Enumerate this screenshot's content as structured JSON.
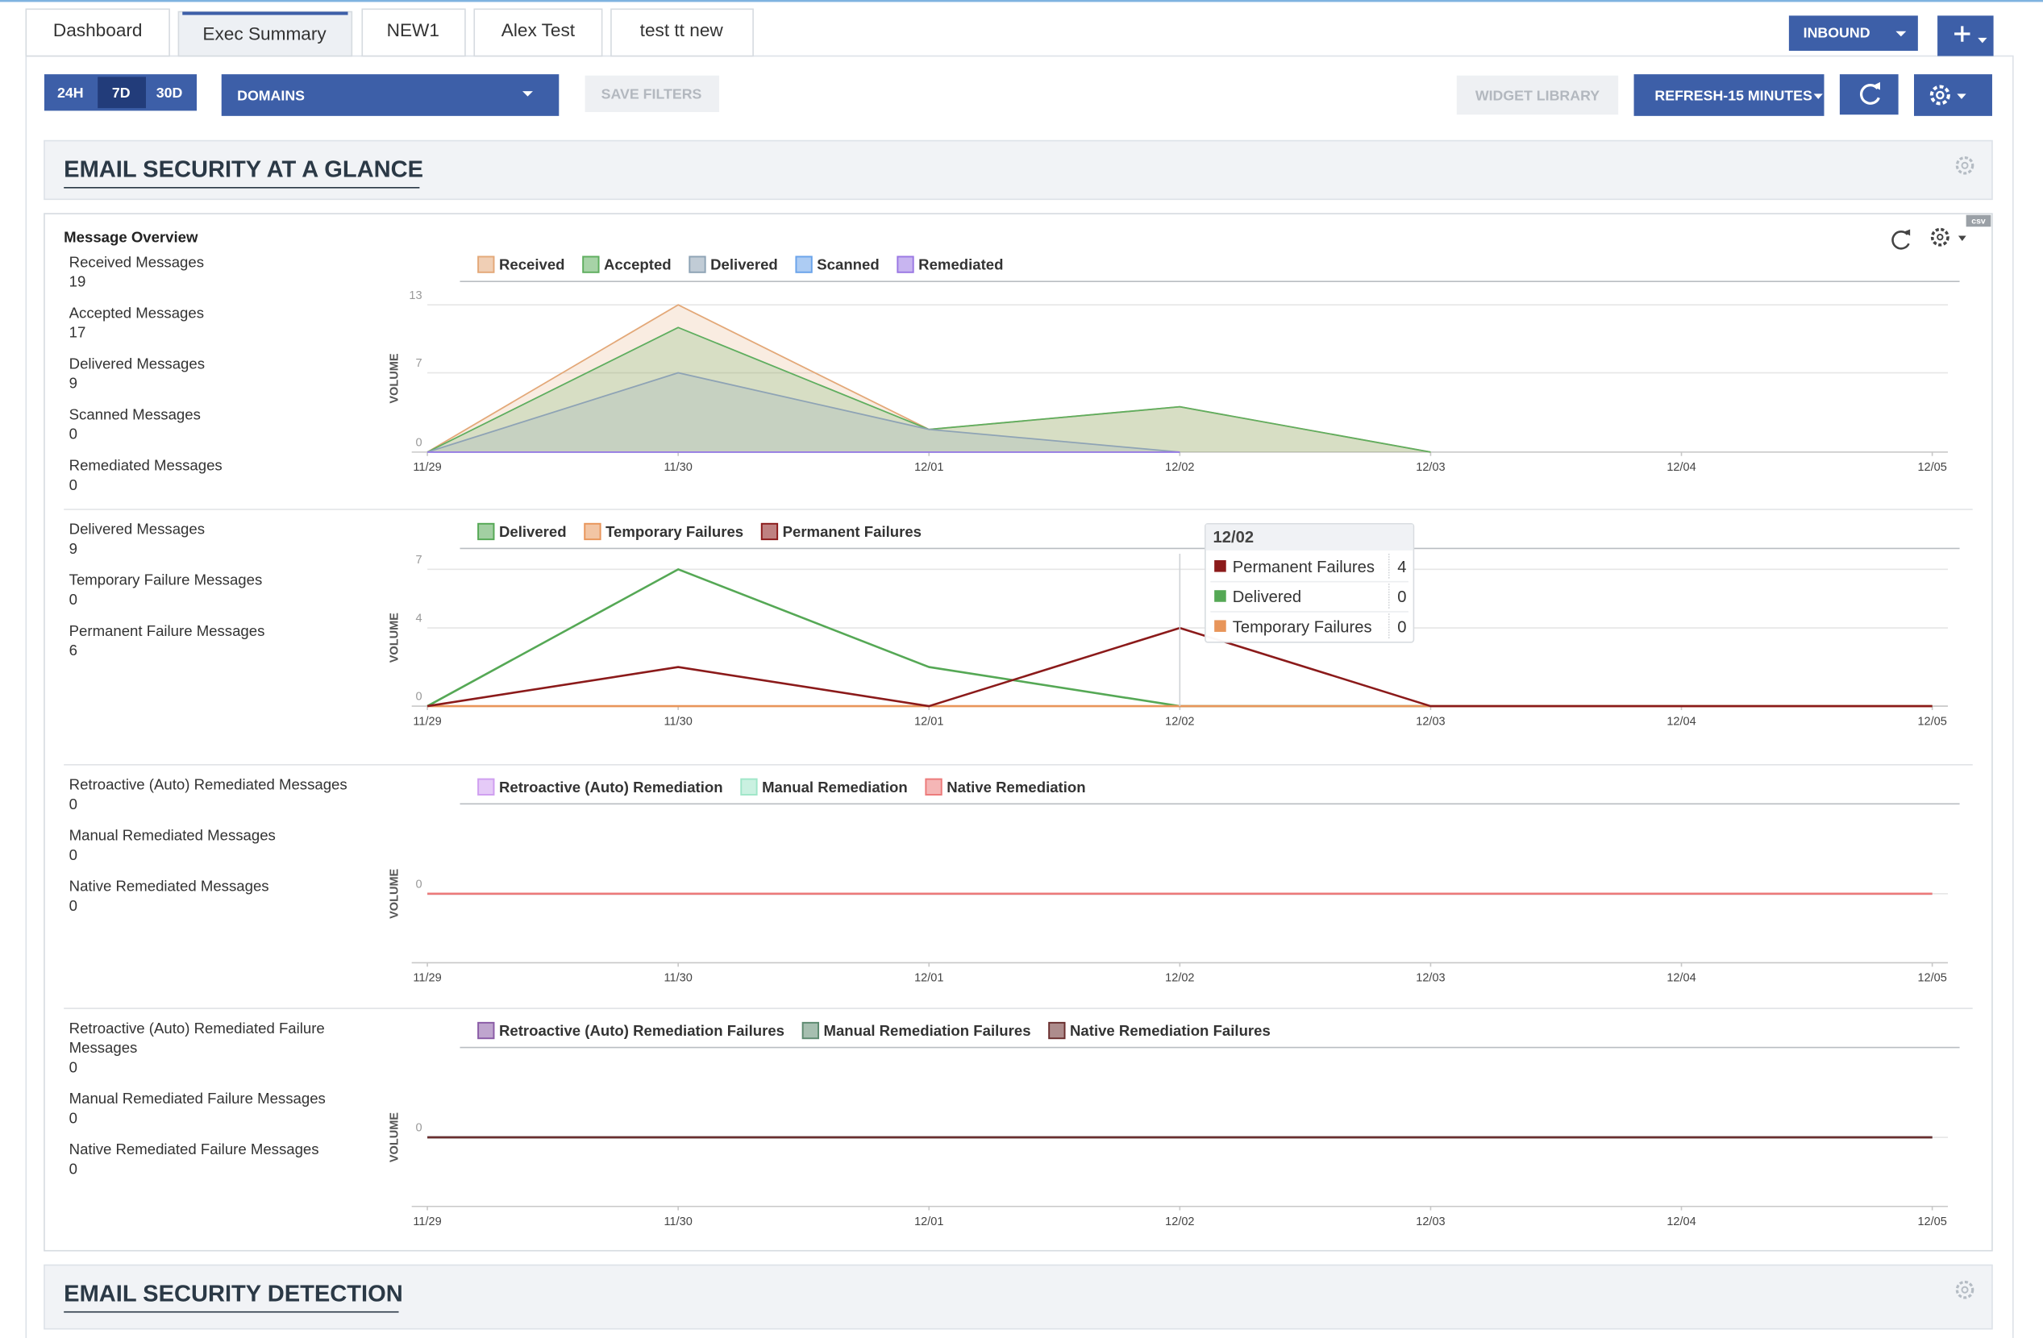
{
  "tabs": [
    "Dashboard",
    "Exec Summary",
    "NEW1",
    "Alex Test",
    "test tt new"
  ],
  "inbound": "INBOUND",
  "filters": {
    "ranges": [
      "24H",
      "7D",
      "30D"
    ],
    "domains": "DOMAINS",
    "save": "SAVE FILTERS",
    "widget_library": "WIDGET LIBRARY",
    "refresh": "REFRESH-15 MINUTES"
  },
  "sections": [
    "EMAIL SECURITY AT A GLANCE",
    "EMAIL SECURITY DETECTION"
  ],
  "widget": {
    "title": "Message Overview",
    "csv": "csv"
  },
  "stats": [
    [
      {
        "label": "Received Messages",
        "value": 19
      },
      {
        "label": "Accepted Messages",
        "value": 17
      },
      {
        "label": "Delivered Messages",
        "value": 9
      },
      {
        "label": "Scanned Messages",
        "value": 0
      },
      {
        "label": "Remediated Messages",
        "value": 0
      }
    ],
    [
      {
        "label": "Delivered Messages",
        "value": 9
      },
      {
        "label": "Temporary Failure Messages",
        "value": 0
      },
      {
        "label": "Permanent Failure Messages",
        "value": 6
      }
    ],
    [
      {
        "label": "Retroactive (Auto) Remediated Messages",
        "value": 0
      },
      {
        "label": "Manual Remediated Messages",
        "value": 0
      },
      {
        "label": "Native Remediated Messages",
        "value": 0
      }
    ],
    [
      {
        "label": "Retroactive (Auto) Remediated Failure Messages",
        "value": 0
      },
      {
        "label": "Manual Remediated Failure Messages",
        "value": 0
      },
      {
        "label": "Native Remediated Failure Messages",
        "value": 0
      }
    ]
  ],
  "chart_data": [
    {
      "type": "area",
      "y_label": "VOLUME",
      "x": [
        "11/29",
        "11/30",
        "12/01",
        "12/02",
        "12/03",
        "12/04",
        "12/05"
      ],
      "ylim": [
        0,
        13
      ],
      "yticks": [
        0,
        7,
        13
      ],
      "series": [
        {
          "name": "Received",
          "color": "#e3a878",
          "values": [
            0,
            13,
            2,
            4,
            0,
            null,
            null
          ]
        },
        {
          "name": "Accepted",
          "color": "#5fae5f",
          "values": [
            0,
            11,
            2,
            4,
            0,
            null,
            null
          ]
        },
        {
          "name": "Delivered",
          "color": "#8ea3b5",
          "values": [
            0,
            7,
            2,
            0,
            null,
            null,
            null
          ]
        },
        {
          "name": "Scanned",
          "color": "#6aa3ea",
          "values": [
            0,
            0,
            0,
            0,
            null,
            null,
            null
          ]
        },
        {
          "name": "Remediated",
          "color": "#9a78e3",
          "values": [
            0,
            0,
            0,
            0,
            null,
            null,
            null
          ]
        }
      ]
    },
    {
      "type": "line",
      "y_label": "VOLUME",
      "x": [
        "11/29",
        "11/30",
        "12/01",
        "12/02",
        "12/03",
        "12/04",
        "12/05"
      ],
      "ylim": [
        0,
        7
      ],
      "yticks": [
        0,
        4,
        7
      ],
      "series": [
        {
          "name": "Delivered",
          "color": "#55a855",
          "values": [
            0,
            7,
            2,
            0,
            0,
            0,
            0
          ]
        },
        {
          "name": "Temporary Failures",
          "color": "#e8955a",
          "values": [
            0,
            0,
            0,
            0,
            0,
            0,
            0
          ]
        },
        {
          "name": "Permanent Failures",
          "color": "#8b1a1a",
          "values": [
            0,
            2,
            0,
            4,
            0,
            0,
            0
          ]
        }
      ]
    },
    {
      "type": "line",
      "y_label": "VOLUME",
      "x": [
        "11/29",
        "11/30",
        "12/01",
        "12/02",
        "12/03",
        "12/04",
        "12/05"
      ],
      "ylim": [
        -1,
        1
      ],
      "yticks": [
        0
      ],
      "series": [
        {
          "name": "Retroactive (Auto) Remediation",
          "color": "#cf9ef0",
          "values": [
            0,
            0,
            0,
            0,
            0,
            0,
            0
          ]
        },
        {
          "name": "Manual Remediation",
          "color": "#9fe6c8",
          "values": [
            0,
            0,
            0,
            0,
            0,
            0,
            0
          ]
        },
        {
          "name": "Native Remediation",
          "color": "#ec7a7a",
          "values": [
            0,
            0,
            0,
            0,
            0,
            0,
            0
          ]
        }
      ]
    },
    {
      "type": "line",
      "y_label": "VOLUME",
      "x": [
        "11/29",
        "11/30",
        "12/01",
        "12/02",
        "12/03",
        "12/04",
        "12/05"
      ],
      "ylim": [
        -1,
        1
      ],
      "yticks": [
        0
      ],
      "series": [
        {
          "name": "Retroactive (Auto) Remediation Failures",
          "color": "#8a5ba6",
          "values": [
            0,
            0,
            0,
            0,
            0,
            0,
            0
          ]
        },
        {
          "name": "Manual Remediation Failures",
          "color": "#5d8a70",
          "values": [
            0,
            0,
            0,
            0,
            0,
            0,
            0
          ]
        },
        {
          "name": "Native Remediation Failures",
          "color": "#6a2e2e",
          "values": [
            0,
            0,
            0,
            0,
            0,
            0,
            0
          ]
        }
      ]
    }
  ],
  "tooltip": {
    "title": "12/02",
    "rows": [
      {
        "name": "Permanent Failures",
        "color": "#8b1a1a",
        "value": 4
      },
      {
        "name": "Delivered",
        "color": "#55a855",
        "value": 0
      },
      {
        "name": "Temporary Failures",
        "color": "#e8955a",
        "value": 0
      }
    ]
  }
}
